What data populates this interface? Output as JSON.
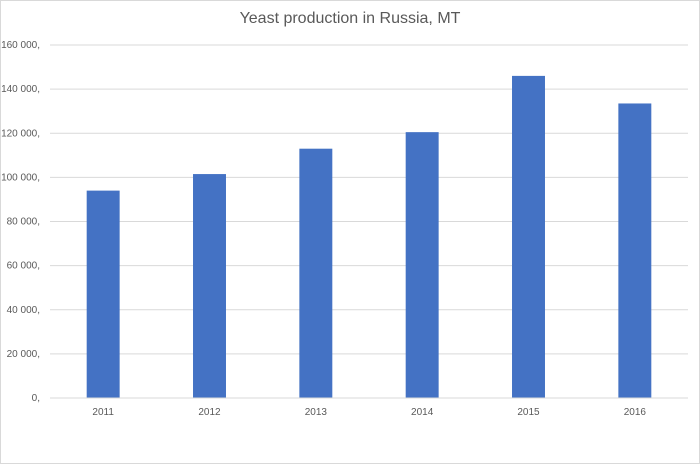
{
  "chart_data": {
    "type": "bar",
    "title": "Yeast production in Russia, MT",
    "xlabel": "",
    "ylabel": "",
    "categories": [
      "2011",
      "2012",
      "2013",
      "2014",
      "2015",
      "2016"
    ],
    "values": [
      94000,
      101500,
      113000,
      120500,
      146000,
      133500
    ],
    "ylim": [
      0,
      160000
    ],
    "yticks": [
      0,
      20000,
      40000,
      60000,
      80000,
      100000,
      120000,
      140000,
      160000
    ],
    "ytick_labels": [
      "0,",
      "20 000,",
      "40 000,",
      "60 000,",
      "80 000,",
      "100 000,",
      "120 000,",
      "140 000,",
      "160 000,"
    ],
    "grid": true,
    "legend": "none",
    "bar_color": "#4472c4",
    "grid_color": "#d9d9d9"
  }
}
